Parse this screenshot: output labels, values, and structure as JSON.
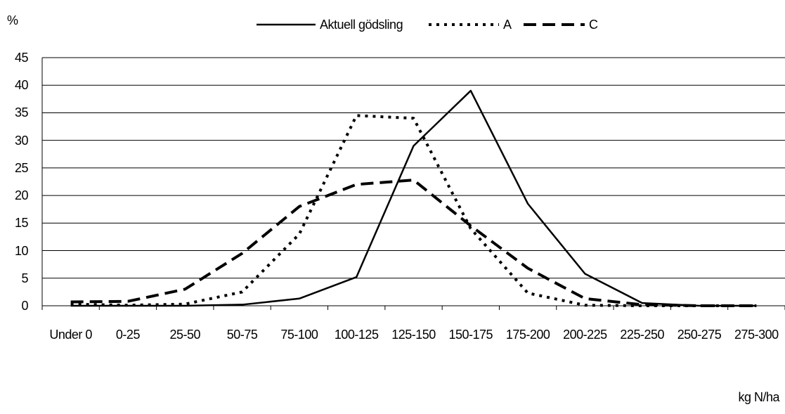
{
  "chart_data": {
    "type": "line",
    "y_label": "%",
    "x_label": "kg N/ha",
    "categories": [
      "Under 0",
      "0-25",
      "25-50",
      "50-75",
      "75-100",
      "100-125",
      "125-150",
      "150-175",
      "175-200",
      "200-225",
      "225-250",
      "250-275",
      "275-300"
    ],
    "series": [
      {
        "name": "Aktuell gödsling",
        "color": "#000000",
        "style": "solid",
        "values": [
          0,
          0,
          0,
          0.2,
          1.3,
          5.2,
          29,
          39,
          18.5,
          5.8,
          0.5,
          0,
          0
        ]
      },
      {
        "name": "A",
        "color": "#000000",
        "style": "dotted",
        "values": [
          0.3,
          0.1,
          0.3,
          2.5,
          13,
          34.5,
          34,
          14,
          2.3,
          0.1,
          0,
          0,
          0
        ]
      },
      {
        "name": "C",
        "color": "#000000",
        "style": "dashed",
        "values": [
          0.7,
          0.8,
          3,
          9.5,
          18,
          22,
          22.8,
          14.5,
          6.8,
          1.3,
          0.2,
          0,
          0
        ]
      }
    ],
    "ylim": [
      0,
      45
    ],
    "yticks": [
      0,
      5,
      10,
      15,
      20,
      25,
      30,
      35,
      40,
      45
    ],
    "grid": true
  }
}
